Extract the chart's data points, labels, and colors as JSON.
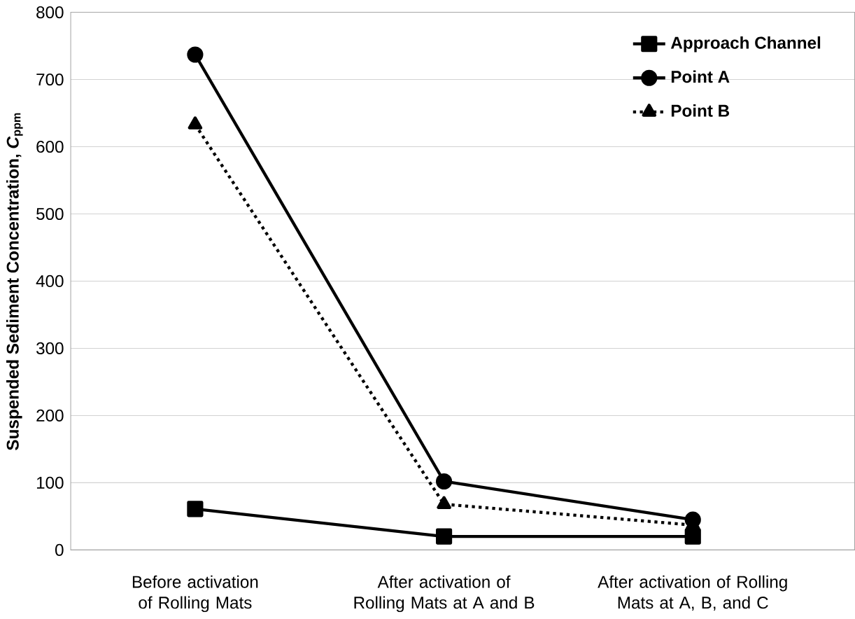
{
  "chart_data": {
    "type": "line",
    "ylabel": "Suspended Sediment Concentration, *C*$_{ppm}$",
    "categories": [
      "Before activation of Rolling Mats",
      "After activation of Rolling Mats at A and B",
      "After activation of Rolling Mats at A, B, and C"
    ],
    "series": [
      {
        "name": "Approach Channel",
        "color": "#000000",
        "marker": "square",
        "line_style": "solid",
        "values": [
          61,
          20,
          20
        ]
      },
      {
        "name": "Point A",
        "color": "#000000",
        "marker": "circle",
        "line_style": "solid",
        "values": [
          737,
          102,
          45
        ]
      },
      {
        "name": "Point B",
        "color": "#000000",
        "marker": "triangle",
        "line_style": "dotted",
        "values": [
          633,
          68,
          37
        ]
      }
    ],
    "ylim": [
      0,
      800
    ],
    "yticks": [
      0,
      100,
      200,
      300,
      400,
      500,
      600,
      700,
      800
    ],
    "grid": "y",
    "legend": "top right"
  }
}
